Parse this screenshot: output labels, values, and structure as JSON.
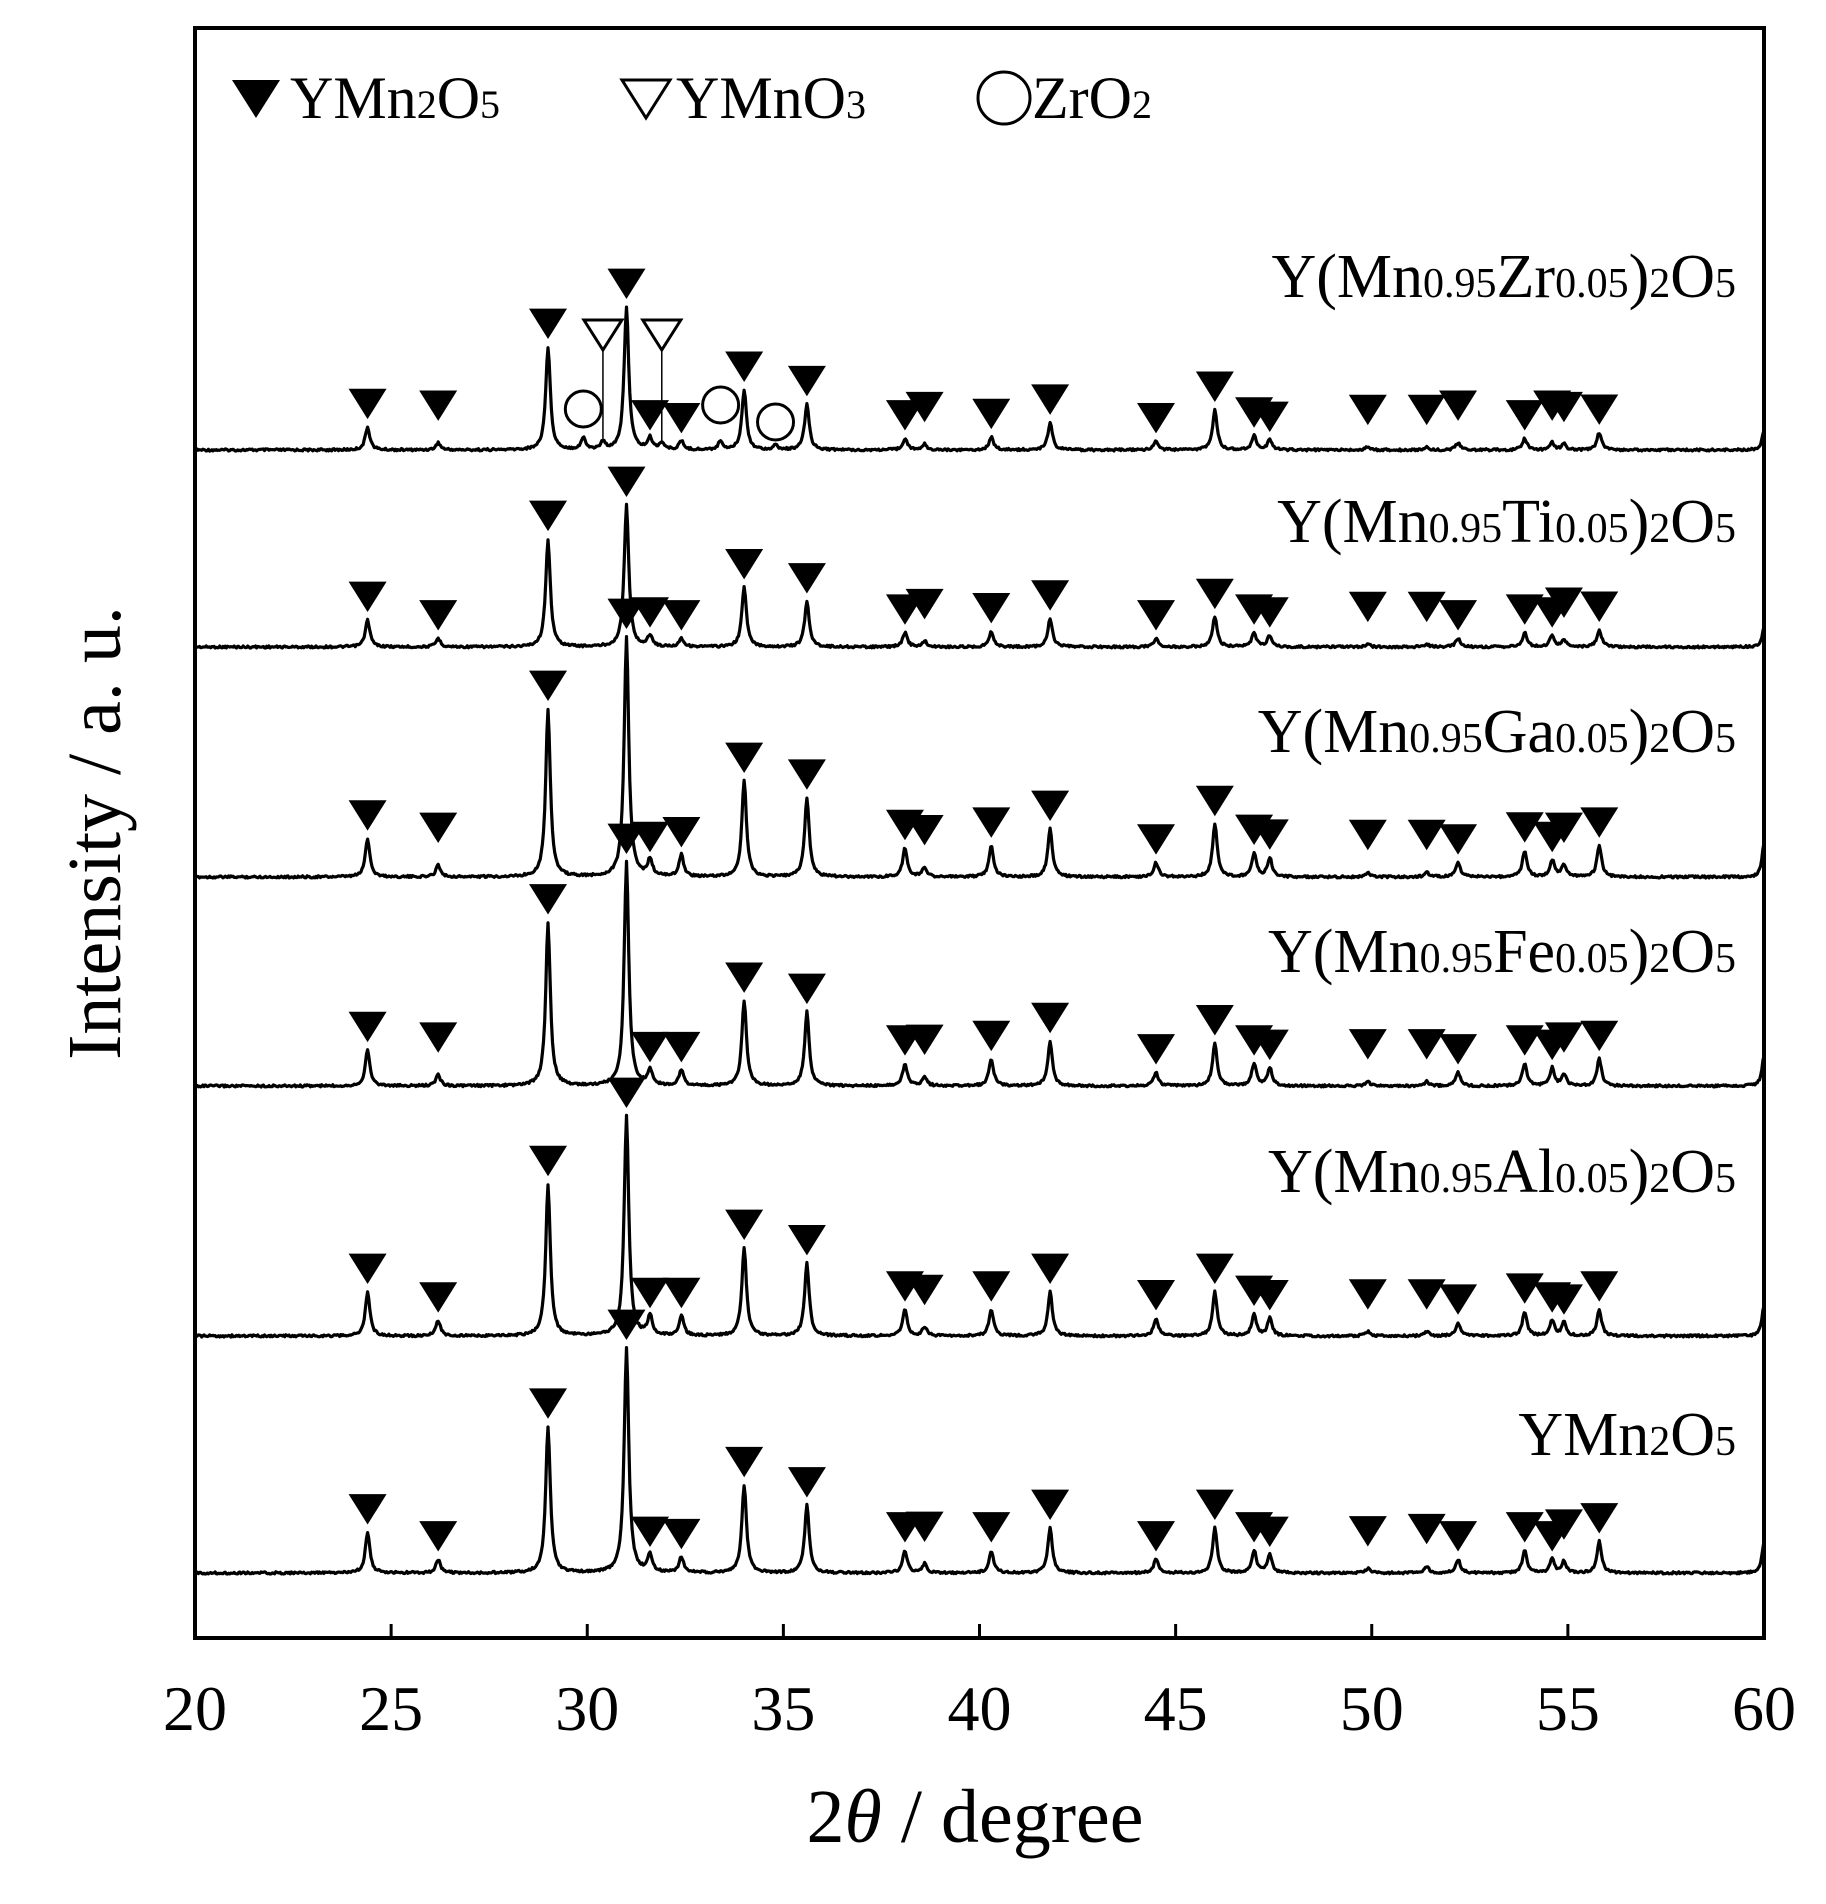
{
  "chart_data": {
    "type": "line",
    "title": "",
    "xlabel": {
      "prefix": "2",
      "symbol": "θ",
      "suffix": " / degree"
    },
    "ylabel": "Intensity / a. u.",
    "xlim": [
      20,
      60
    ],
    "x_ticks": [
      20,
      25,
      30,
      35,
      40,
      45,
      50,
      55,
      60
    ],
    "grid": false,
    "legend": {
      "placement": "top-left",
      "entries": [
        {
          "marker": "filled-triangle",
          "name": "YMn",
          "sub1": "2",
          "mid": "O",
          "sub2": "5"
        },
        {
          "marker": "open-triangle",
          "name": "YMnO",
          "sub1": "3",
          "mid": "",
          "sub2": ""
        },
        {
          "marker": "open-circle",
          "name": "ZrO",
          "sub1": "2",
          "mid": "",
          "sub2": ""
        }
      ]
    },
    "phase_peaks": {
      "YMn2O5": [
        24.4,
        26.2,
        29.0,
        31.0,
        31.6,
        32.4,
        34.0,
        35.6,
        38.1,
        38.6,
        40.3,
        41.8,
        44.5,
        46.0,
        47.0,
        47.4,
        49.9,
        51.4,
        52.2,
        53.9,
        54.6,
        54.9,
        55.8
      ],
      "YMnO3": [
        30.4,
        31.9
      ],
      "ZrO2": [
        29.9,
        33.4,
        34.8
      ]
    },
    "series": [
      {
        "name": "Y(Mn0.95Zr0.05)2O5",
        "parts": [
          [
            "Y(Mn",
            ""
          ],
          [
            "0.95",
            "sub"
          ],
          [
            "Zr",
            ""
          ],
          [
            "0.05",
            "sub"
          ],
          [
            ")",
            ""
          ],
          [
            "2",
            "sub"
          ],
          [
            "O",
            ""
          ],
          [
            "5",
            "sub"
          ]
        ],
        "peak_intensity": [
          0.16,
          0.05,
          0.72,
          1.0,
          0.08,
          0.06,
          0.42,
          0.32,
          0.08,
          0.04,
          0.09,
          0.19,
          0.06,
          0.28,
          0.1,
          0.07,
          0.02,
          0.02,
          0.05,
          0.08,
          0.05,
          0.04,
          0.12
        ],
        "extra_peaks": [
          [
            29.9,
            0.08
          ],
          [
            30.4,
            0.05
          ],
          [
            31.9,
            0.05
          ],
          [
            33.4,
            0.06
          ],
          [
            34.8,
            0.03
          ]
        ]
      },
      {
        "name": "Y(Mn0.95Ti0.05)2O5",
        "parts": [
          [
            "Y(Mn",
            ""
          ],
          [
            "0.95",
            "sub"
          ],
          [
            "Ti",
            ""
          ],
          [
            "0.05",
            "sub"
          ],
          [
            ")",
            ""
          ],
          [
            "2",
            "sub"
          ],
          [
            "O",
            ""
          ],
          [
            "5",
            "sub"
          ]
        ],
        "peak_intensity": [
          0.19,
          0.06,
          0.76,
          1.0,
          0.08,
          0.06,
          0.42,
          0.32,
          0.1,
          0.04,
          0.11,
          0.2,
          0.06,
          0.21,
          0.1,
          0.08,
          0.02,
          0.02,
          0.06,
          0.1,
          0.08,
          0.05,
          0.12
        ],
        "extra_peaks": []
      },
      {
        "name": "Y(Mn0.95Ga0.05)2O5",
        "parts": [
          [
            "Y(Mn",
            ""
          ],
          [
            "0.95",
            "sub"
          ],
          [
            "Ga",
            ""
          ],
          [
            "0.05",
            "sub"
          ],
          [
            ")",
            ""
          ],
          [
            "2",
            "sub"
          ],
          [
            "O",
            ""
          ],
          [
            "5",
            "sub"
          ]
        ],
        "peak_intensity": [
          0.16,
          0.05,
          0.7,
          1.0,
          0.07,
          0.09,
          0.4,
          0.33,
          0.12,
          0.04,
          0.13,
          0.2,
          0.06,
          0.22,
          0.1,
          0.08,
          0.02,
          0.02,
          0.06,
          0.11,
          0.07,
          0.05,
          0.13
        ],
        "extra_peaks": []
      },
      {
        "name": "Y(Mn0.95Fe0.05)2O5",
        "parts": [
          [
            "Y(Mn",
            ""
          ],
          [
            "0.95",
            "sub"
          ],
          [
            "Fe",
            ""
          ],
          [
            "0.05",
            "sub"
          ],
          [
            ")",
            ""
          ],
          [
            "2",
            "sub"
          ],
          [
            "O",
            ""
          ],
          [
            "5",
            "sub"
          ]
        ],
        "peak_intensity": [
          0.16,
          0.05,
          0.73,
          1.0,
          0.07,
          0.07,
          0.38,
          0.33,
          0.1,
          0.04,
          0.12,
          0.2,
          0.06,
          0.19,
          0.1,
          0.08,
          0.02,
          0.02,
          0.06,
          0.1,
          0.08,
          0.05,
          0.12
        ],
        "extra_peaks": []
      },
      {
        "name": "Y(Mn0.95Al0.05)2O5",
        "parts": [
          [
            "Y(Mn",
            ""
          ],
          [
            "0.95",
            "sub"
          ],
          [
            "Al",
            ""
          ],
          [
            "0.05",
            "sub"
          ],
          [
            ")",
            ""
          ],
          [
            "2",
            "sub"
          ],
          [
            "O",
            ""
          ],
          [
            "5",
            "sub"
          ]
        ],
        "peak_intensity": [
          0.2,
          0.07,
          0.69,
          1.0,
          0.09,
          0.09,
          0.4,
          0.33,
          0.12,
          0.04,
          0.12,
          0.2,
          0.08,
          0.2,
          0.1,
          0.08,
          0.02,
          0.02,
          0.06,
          0.11,
          0.07,
          0.06,
          0.12
        ],
        "extra_peaks": []
      },
      {
        "name": "YMn2O5",
        "parts": [
          [
            "YMn",
            ""
          ],
          [
            "2",
            "sub"
          ],
          [
            "O",
            ""
          ],
          [
            "5",
            "sub"
          ]
        ],
        "peak_intensity": [
          0.18,
          0.06,
          0.65,
          1.0,
          0.08,
          0.07,
          0.39,
          0.3,
          0.1,
          0.04,
          0.1,
          0.2,
          0.06,
          0.2,
          0.1,
          0.08,
          0.02,
          0.03,
          0.06,
          0.1,
          0.06,
          0.05,
          0.14
        ],
        "extra_peaks": []
      }
    ]
  }
}
